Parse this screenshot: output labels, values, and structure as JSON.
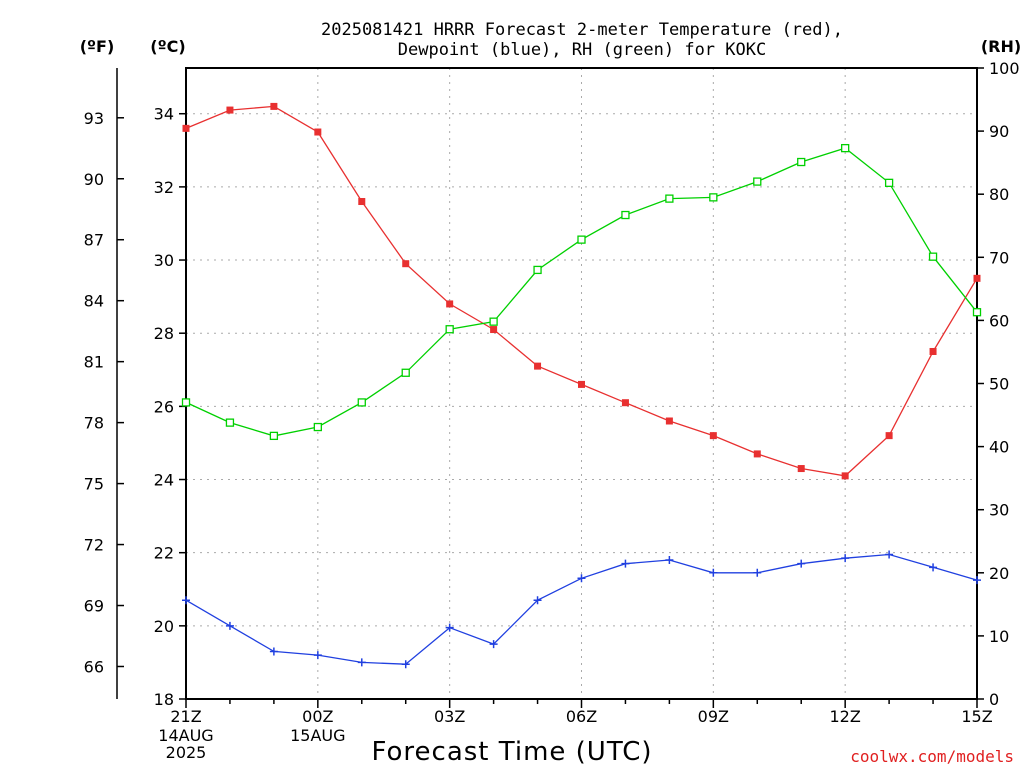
{
  "title": {
    "line1": "2025081421 HRRR Forecast 2-meter Temperature (red),",
    "line2": "Dewpoint (blue), RH (green) for KOKC"
  },
  "units": {
    "fahrenheit": "(ºF)",
    "celsius": "(ºC)",
    "rh": "(RH)"
  },
  "xlabel": "Forecast Time (UTC)",
  "credit": "coolwx.com/models",
  "colors": {
    "temperature": "#e83030",
    "dewpoint": "#2040e0",
    "rh": "#00d000",
    "grid": "#aaaaaa"
  },
  "chart_data": {
    "type": "line",
    "x": [
      "21Z",
      "22Z",
      "23Z",
      "00Z",
      "01Z",
      "02Z",
      "03Z",
      "04Z",
      "05Z",
      "06Z",
      "07Z",
      "08Z",
      "09Z",
      "10Z",
      "11Z",
      "12Z",
      "13Z",
      "14Z",
      "15Z"
    ],
    "x_tick_labels": [
      "21Z",
      "00Z",
      "03Z",
      "06Z",
      "09Z",
      "12Z",
      "15Z"
    ],
    "x_date_labels": [
      {
        "at": "21Z",
        "lines": [
          "14AUG",
          "2025"
        ]
      },
      {
        "at": "00Z",
        "lines": [
          "15AUG"
        ]
      }
    ],
    "series": [
      {
        "name": "Temperature",
        "axis": "celsius",
        "marker": "filled-square",
        "values": [
          33.6,
          34.1,
          34.2,
          33.5,
          31.6,
          29.9,
          28.8,
          28.1,
          27.1,
          26.6,
          26.1,
          25.6,
          25.2,
          24.7,
          24.3,
          24.1,
          25.2,
          27.5,
          29.5
        ]
      },
      {
        "name": "Dewpoint",
        "axis": "celsius",
        "marker": "plus",
        "values": [
          20.7,
          20.0,
          19.3,
          19.2,
          19.0,
          18.95,
          19.95,
          19.5,
          20.7,
          21.3,
          21.7,
          21.8,
          21.45,
          21.45,
          21.7,
          21.85,
          21.95,
          21.6,
          21.25
        ]
      },
      {
        "name": "RH",
        "axis": "rh",
        "marker": "open-square",
        "values": [
          47,
          43.8,
          41.7,
          43.1,
          47,
          51.7,
          58.6,
          59.8,
          68,
          72.8,
          76.7,
          79.3,
          79.5,
          82,
          85.1,
          87.3,
          81.8,
          70.1,
          61.3
        ]
      }
    ],
    "y_celsius": {
      "range": [
        18,
        35.25
      ],
      "ticks": [
        "18",
        "20",
        "22",
        "24",
        "26",
        "28",
        "30",
        "32",
        "34"
      ]
    },
    "y_fahrenheit": {
      "ticks": [
        "66",
        "69",
        "72",
        "75",
        "78",
        "81",
        "84",
        "87",
        "90",
        "93"
      ]
    },
    "y_rh": {
      "range": [
        0,
        100
      ],
      "ticks": [
        "0",
        "10",
        "20",
        "30",
        "40",
        "50",
        "60",
        "70",
        "80",
        "90",
        "100"
      ]
    },
    "grid": true
  }
}
